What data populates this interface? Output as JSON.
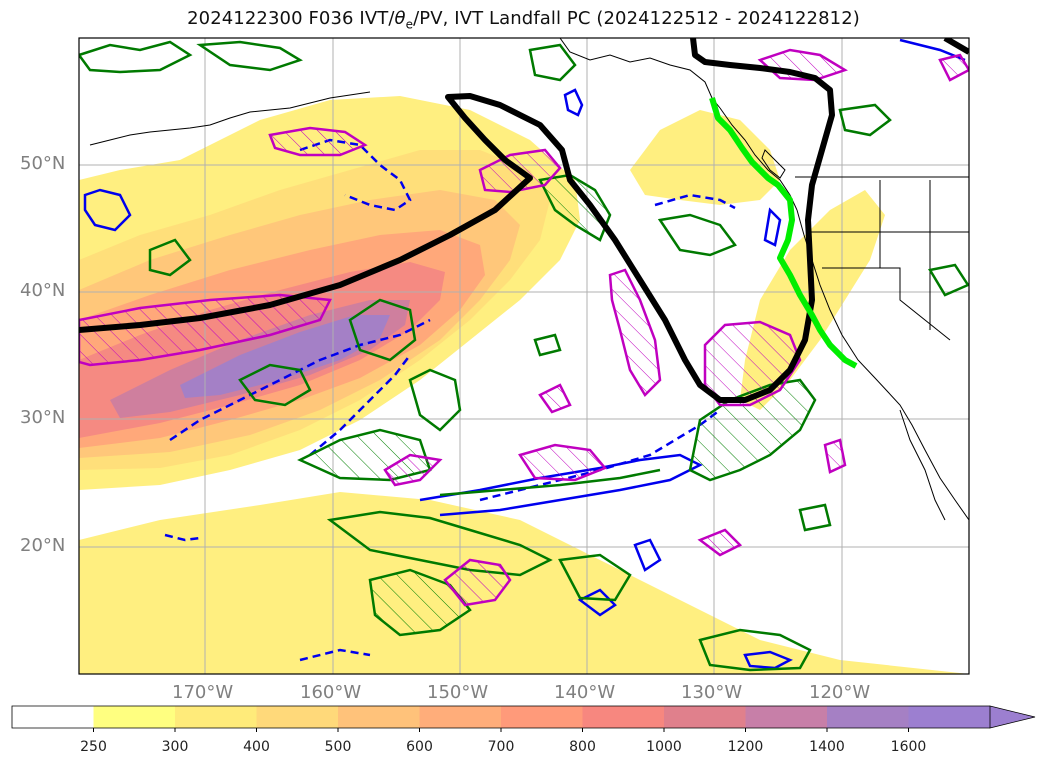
{
  "title": {
    "date_code": "2024122300",
    "fhour": "F036",
    "var_pre": "IVT/",
    "theta_sym": "θ",
    "theta_sub": "e",
    "var_post": "/PV, IVT Landfall PC (2024122512 - 2024122812)"
  },
  "lat_labels": [
    "50°N",
    "40°N",
    "30°N",
    "20°N"
  ],
  "lon_labels": [
    "170°W",
    "160°W",
    "150°W",
    "140°W",
    "130°W",
    "120°W"
  ],
  "colorbar": {
    "ticks": [
      "250",
      "300",
      "400",
      "500",
      "600",
      "700",
      "800",
      "1000",
      "1200",
      "1400",
      "1600"
    ],
    "colors": [
      "#ffffff",
      "#ffff80",
      "#ffeb7a",
      "#ffd97a",
      "#ffc27a",
      "#ffad7a",
      "#ff9a7a",
      "#f7877f",
      "#e0808c",
      "#c77fa8",
      "#a580c4",
      "#9c7fd0"
    ]
  },
  "legend_colors": {
    "ivt_landfall_pc": "#000000",
    "landfall_coast": "#00ee00",
    "theta_e": "#0000ee",
    "pv_positive": "#008000",
    "pv_hatched": "#c000c0"
  }
}
